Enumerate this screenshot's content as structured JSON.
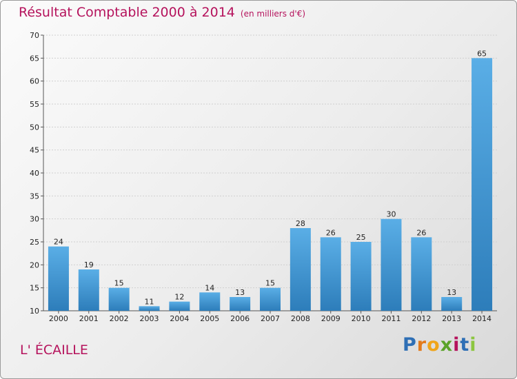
{
  "header": {
    "title": "Résultat Comptable 2000 à 2014",
    "unit": "(en milliers d'€)"
  },
  "commune": "L' ÉCAILLE",
  "logo": {
    "letters": [
      "P",
      "r",
      "o",
      "x",
      "i",
      "t",
      "i"
    ]
  },
  "colors": {
    "accent": "#b5125c",
    "bar_top": "#5aaee6",
    "bar_bottom": "#2d7dba"
  },
  "chart_data": {
    "type": "bar",
    "title": "Résultat Comptable 2000 à 2014",
    "subtitle": "(en milliers d'€)",
    "xlabel": "",
    "ylabel": "",
    "categories": [
      "2000",
      "2001",
      "2002",
      "2003",
      "2004",
      "2005",
      "2006",
      "2007",
      "2008",
      "2009",
      "2010",
      "2011",
      "2012",
      "2013",
      "2014"
    ],
    "values": [
      24,
      19,
      15,
      11,
      12,
      14,
      13,
      15,
      28,
      26,
      25,
      30,
      26,
      13,
      65
    ],
    "ylim": [
      10,
      70
    ],
    "yticks": [
      10,
      15,
      20,
      25,
      30,
      35,
      40,
      45,
      50,
      55,
      60,
      65,
      70
    ],
    "grid": true
  }
}
